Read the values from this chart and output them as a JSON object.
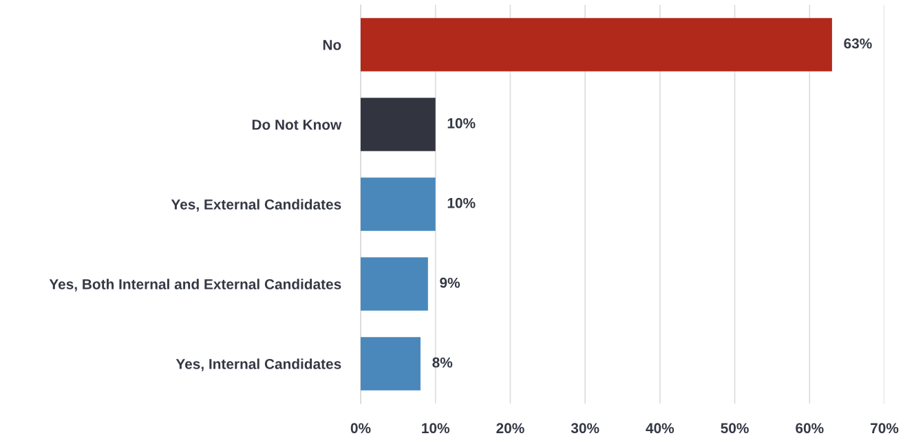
{
  "chart_data": {
    "type": "bar",
    "orientation": "horizontal",
    "categories": [
      "No",
      "Do Not Know",
      "Yes, External Candidates",
      "Yes, Both Internal and External Candidates",
      "Yes, Internal Candidates"
    ],
    "values": [
      63,
      10,
      10,
      9,
      8
    ],
    "colors": [
      "#b0291a",
      "#32353f",
      "#4a88bb",
      "#4a88bb",
      "#4a88bb"
    ],
    "value_labels": [
      "63%",
      "10%",
      "10%",
      "9%",
      "8%"
    ],
    "xlim": [
      0,
      70
    ],
    "xticks": [
      {
        "value": 0,
        "label": "0%"
      },
      {
        "value": 10,
        "label": "10%"
      },
      {
        "value": 20,
        "label": "20%"
      },
      {
        "value": 30,
        "label": "30%"
      },
      {
        "value": 40,
        "label": "40%"
      },
      {
        "value": 50,
        "label": "50%"
      },
      {
        "value": 60,
        "label": "60%"
      },
      {
        "value": 70,
        "label": "70%"
      }
    ],
    "grid": "x",
    "legend": false
  }
}
